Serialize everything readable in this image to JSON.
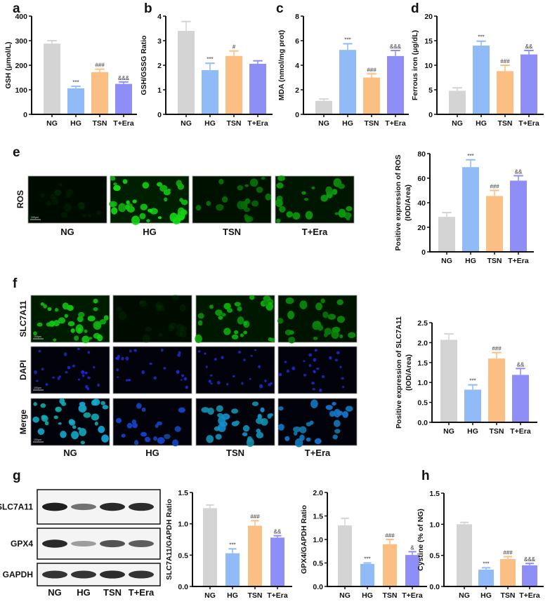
{
  "groups": [
    "NG",
    "HG",
    "TSN",
    "T+Era"
  ],
  "colors": {
    "NG": "#d4d4d4",
    "HG": "#90bbf6",
    "TSN": "#fbbf84",
    "T+Era": "#8e8ef6",
    "axis": "#111111"
  },
  "panels": {
    "e": {
      "letter": "e",
      "row_label": "ROS",
      "channel_color": "green",
      "scale_bar": "100μm"
    },
    "f": {
      "letter": "f",
      "row_labels": [
        "SLC7A11",
        "DAPI",
        "Merge"
      ],
      "scale_bar": "100μm"
    },
    "g": {
      "letter": "g",
      "blot_labels": [
        "SLC7A11",
        "GPX4",
        "GAPDH"
      ],
      "band_intensity": {
        "SLC7A11": [
          0.95,
          0.55,
          0.9,
          0.88
        ],
        "GPX4": [
          0.9,
          0.35,
          0.7,
          0.65
        ],
        "GAPDH": [
          0.85,
          0.85,
          0.88,
          0.85
        ]
      }
    },
    "h": {
      "letter": "h"
    }
  },
  "chart_data": [
    {
      "id": "a",
      "letter": "a",
      "type": "bar",
      "ylabel": "GSH (μmol/L)",
      "ylim": [
        0,
        400
      ],
      "ticks": [
        "0",
        "100",
        "200",
        "300",
        "400"
      ],
      "categories": [
        "NG",
        "HG",
        "TSN",
        "T+Era"
      ],
      "values": [
        288,
        106,
        172,
        124
      ],
      "errors": [
        12,
        8,
        12,
        8
      ],
      "annotations": [
        "",
        "***",
        "###",
        "&&&"
      ]
    },
    {
      "id": "b",
      "letter": "b",
      "type": "bar",
      "ylabel": "GSH/GSSG Ratio",
      "ylim": [
        0,
        4
      ],
      "ticks": [
        "0",
        "1",
        "2",
        "3",
        "4"
      ],
      "categories": [
        "NG",
        "HG",
        "TSN",
        "T+Era"
      ],
      "values": [
        3.4,
        1.8,
        2.38,
        2.06
      ],
      "errors": [
        0.38,
        0.28,
        0.2,
        0.12
      ],
      "annotations": [
        "",
        "***",
        "#",
        ""
      ]
    },
    {
      "id": "c",
      "letter": "c",
      "type": "bar",
      "ylabel": "MDA (nmol/mg prot)",
      "ylim": [
        0,
        8
      ],
      "ticks": [
        "0",
        "2",
        "4",
        "6",
        "8"
      ],
      "categories": [
        "NG",
        "HG",
        "TSN",
        "T+Era"
      ],
      "values": [
        1.1,
        5.25,
        3.0,
        4.75
      ],
      "errors": [
        0.15,
        0.5,
        0.3,
        0.45
      ],
      "annotations": [
        "",
        "***",
        "###",
        "&&&"
      ]
    },
    {
      "id": "d",
      "letter": "d",
      "type": "bar",
      "ylabel": "Ferrous iron (μg/dL)",
      "ylim": [
        0,
        20
      ],
      "ticks": [
        "0",
        "5",
        "10",
        "15",
        "20"
      ],
      "categories": [
        "NG",
        "HG",
        "TSN",
        "T+Era"
      ],
      "values": [
        4.8,
        14.0,
        8.8,
        12.2
      ],
      "errors": [
        0.6,
        0.9,
        1.2,
        0.8
      ],
      "annotations": [
        "",
        "***",
        "###",
        "&&"
      ]
    },
    {
      "id": "e",
      "type": "bar",
      "ylabel": "Positive expression of  ROS",
      "ylabel2": "(IOD/Area)",
      "ylim": [
        0,
        80
      ],
      "ticks": [
        "0",
        "20",
        "40",
        "60",
        "80"
      ],
      "categories": [
        "NG",
        "HG",
        "TSN",
        "T+Era"
      ],
      "values": [
        28.5,
        69,
        45.5,
        58
      ],
      "errors": [
        3.5,
        6,
        4.5,
        4
      ],
      "annotations": [
        "",
        "***",
        "###",
        "&&"
      ]
    },
    {
      "id": "f",
      "type": "bar",
      "ylabel": "Positive expression of  SLC7A11",
      "ylabel2": "(IOD/Area)",
      "ylim": [
        0,
        2.5
      ],
      "ticks": [
        "0.0",
        "0.5",
        "1.0",
        "1.5",
        "2.0",
        "2.5"
      ],
      "categories": [
        "NG",
        "HG",
        "TSN",
        "T+Era"
      ],
      "values": [
        2.07,
        0.82,
        1.6,
        1.19
      ],
      "errors": [
        0.15,
        0.12,
        0.15,
        0.16
      ],
      "annotations": [
        "",
        "***",
        "###",
        "&&"
      ]
    },
    {
      "id": "g1",
      "type": "bar",
      "ylabel": "SLC7A11/GAPDH Ratio",
      "ylim": [
        0,
        1.5
      ],
      "ticks": [
        "0.0",
        "0.5",
        "1.0",
        "1.5"
      ],
      "categories": [
        "NG",
        "HG",
        "TSN",
        "T+Era"
      ],
      "values": [
        1.25,
        0.53,
        0.97,
        0.78
      ],
      "errors": [
        0.05,
        0.07,
        0.08,
        0.03
      ],
      "annotations": [
        "",
        "***",
        "###",
        "&&"
      ]
    },
    {
      "id": "g2",
      "type": "bar",
      "ylabel": "GPX4/GAPDH Ratio",
      "ylim": [
        0,
        2
      ],
      "ticks": [
        "0.0",
        "0.5",
        "1.0",
        "1.5",
        "2.0"
      ],
      "categories": [
        "NG",
        "HG",
        "TSN",
        "T+Era"
      ],
      "values": [
        1.3,
        0.48,
        0.9,
        0.67
      ],
      "errors": [
        0.15,
        0.02,
        0.1,
        0.07
      ],
      "annotations": [
        "",
        "***",
        "###",
        "&"
      ]
    },
    {
      "id": "h",
      "type": "bar",
      "ylabel": "Cystine  (% of NG)",
      "ylim": [
        0,
        1.5
      ],
      "ticks": [
        "0.0",
        "0.5",
        "1.0",
        "1.5"
      ],
      "categories": [
        "NG",
        "HG",
        "TSN",
        "T+Era"
      ],
      "values": [
        1.0,
        0.27,
        0.44,
        0.34
      ],
      "errors": [
        0.03,
        0.03,
        0.04,
        0.03
      ],
      "annotations": [
        "",
        "***",
        "###",
        "&&&"
      ]
    }
  ]
}
